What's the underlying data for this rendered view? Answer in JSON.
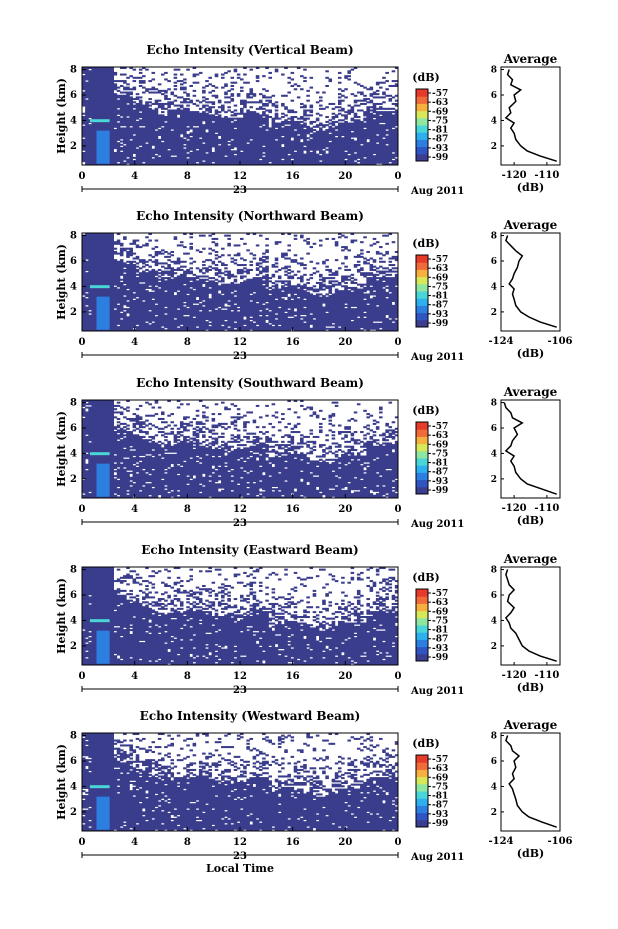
{
  "colorbar_unit": "(dB)",
  "colorbar_ticks": [
    "-57",
    "-63",
    "-69",
    "-75",
    "-81",
    "-87",
    "-93",
    "-99"
  ],
  "x_ticks": [
    "0",
    "4",
    "8",
    "12",
    "16",
    "20",
    "0"
  ],
  "day_label": "23",
  "month_label": "Aug 2011",
  "x_axis_label": "Local Time",
  "y_axis_label": "Height (km)",
  "y_ticks": [
    "2",
    "4",
    "6",
    "8"
  ],
  "avg_title": "Average",
  "avg_unit": "(dB)",
  "colors": {
    "background": "#ffffff",
    "echo_fill": "#3a3c8c",
    "colormap": [
      "#3b3d8f",
      "#2f55c2",
      "#2c7fe0",
      "#2fb0ee",
      "#4ad6d6",
      "#8ee6a0",
      "#d7e85a",
      "#f5b040",
      "#f06a3a",
      "#e63a2a"
    ]
  },
  "chart_data": [
    {
      "type": "heatmap",
      "title": "Echo Intensity (Vertical Beam)",
      "xlabel": "",
      "ylabel": "Height (km)",
      "xlim": [
        0,
        24
      ],
      "ylim": [
        0.5,
        8.2
      ],
      "colorbar_range_db": [
        -99,
        -57
      ],
      "avg_profile": {
        "xlim": [
          -124,
          -106
        ],
        "x_ticks": [
          "-120",
          "-110"
        ],
        "height": [
          0.8,
          1.2,
          1.6,
          2.0,
          2.5,
          3.0,
          3.4,
          3.8,
          4.2,
          4.6,
          5.0,
          5.5,
          6.0,
          6.4,
          6.8,
          7.2,
          7.6,
          8.0
        ],
        "db": [
          -107,
          -112,
          -116,
          -118,
          -119.5,
          -120,
          -121,
          -120,
          -122.5,
          -121,
          -121.5,
          -119.5,
          -120,
          -118,
          -121,
          -120.5,
          -122,
          -121.5
        ]
      }
    },
    {
      "type": "heatmap",
      "title": "Echo Intensity (Northward Beam)",
      "xlabel": "",
      "ylabel": "Height (km)",
      "xlim": [
        0,
        24
      ],
      "ylim": [
        0.5,
        8.2
      ],
      "colorbar_range_db": [
        -99,
        -57
      ],
      "avg_profile": {
        "xlim": [
          -124,
          -106
        ],
        "x_ticks": [
          "-124",
          "-106"
        ],
        "height": [
          0.8,
          1.2,
          1.6,
          2.0,
          2.5,
          3.0,
          3.4,
          3.8,
          4.2,
          4.6,
          5.0,
          5.5,
          6.0,
          6.4,
          6.8,
          7.2,
          7.6,
          8.0
        ],
        "db": [
          -107,
          -112,
          -115.5,
          -118,
          -119.5,
          -120,
          -120.5,
          -120,
          -121.5,
          -120.5,
          -120,
          -119,
          -118.5,
          -117.5,
          -119.5,
          -121,
          -122.5,
          -122
        ]
      }
    },
    {
      "type": "heatmap",
      "title": "Echo Intensity (Southward Beam)",
      "xlabel": "",
      "ylabel": "Height (km)",
      "xlim": [
        0,
        24
      ],
      "ylim": [
        0.5,
        8.2
      ],
      "colorbar_range_db": [
        -99,
        -57
      ],
      "avg_profile": {
        "xlim": [
          -124,
          -106
        ],
        "x_ticks": [
          "-120",
          "-110"
        ],
        "height": [
          0.8,
          1.2,
          1.6,
          2.0,
          2.5,
          3.0,
          3.4,
          3.8,
          4.2,
          4.6,
          5.0,
          5.5,
          6.0,
          6.4,
          6.8,
          7.2,
          7.6,
          8.0
        ],
        "db": [
          -107,
          -111.5,
          -116,
          -118,
          -119.5,
          -120,
          -121,
          -120,
          -122.5,
          -121,
          -120.5,
          -119,
          -120,
          -117.5,
          -120.5,
          -121,
          -122.5,
          -123
        ]
      }
    },
    {
      "type": "heatmap",
      "title": "Echo Intensity (Eastward Beam)",
      "xlabel": "",
      "ylabel": "Height (km)",
      "xlim": [
        0,
        24
      ],
      "ylim": [
        0.5,
        8.2
      ],
      "colorbar_range_db": [
        -99,
        -57
      ],
      "avg_profile": {
        "xlim": [
          -124,
          -106
        ],
        "x_ticks": [
          "-120",
          "-110"
        ],
        "height": [
          0.8,
          1.2,
          1.6,
          2.0,
          2.5,
          3.0,
          3.4,
          3.8,
          4.2,
          4.6,
          5.0,
          5.5,
          6.0,
          6.4,
          6.8,
          7.2,
          7.6,
          8.0
        ],
        "db": [
          -107,
          -112,
          -115.5,
          -117.5,
          -118.5,
          -119.5,
          -121,
          -121.5,
          -122.5,
          -121,
          -120,
          -122,
          -121.5,
          -120,
          -121.5,
          -122,
          -122.5,
          -122
        ]
      }
    },
    {
      "type": "heatmap",
      "title": "Echo Intensity (Westward Beam)",
      "xlabel": "Local Time",
      "ylabel": "Height (km)",
      "xlim": [
        0,
        24
      ],
      "ylim": [
        0.5,
        8.2
      ],
      "colorbar_range_db": [
        -99,
        -57
      ],
      "avg_profile": {
        "xlim": [
          -124,
          -106
        ],
        "x_ticks": [
          "-124",
          "-106"
        ],
        "height": [
          0.8,
          1.2,
          1.6,
          2.0,
          2.5,
          3.0,
          3.4,
          3.8,
          4.2,
          4.6,
          5.0,
          5.5,
          6.0,
          6.4,
          6.8,
          7.2,
          7.6,
          8.0
        ],
        "db": [
          -107,
          -111.5,
          -115.5,
          -117.5,
          -119,
          -119.5,
          -120,
          -120.5,
          -121.5,
          -120,
          -120.5,
          -119.5,
          -120,
          -118.5,
          -120.5,
          -121,
          -122.5,
          -122
        ]
      }
    }
  ]
}
